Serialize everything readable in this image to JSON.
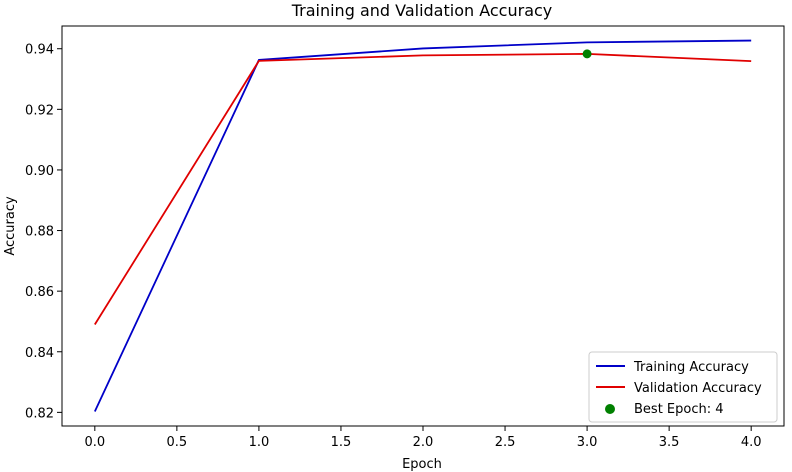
{
  "chart_data": {
    "type": "line",
    "title": "Training and Validation Accuracy",
    "xlabel": "Epoch",
    "ylabel": "Accuracy",
    "xlim": [
      -0.2,
      4.2
    ],
    "ylim": [
      0.8155,
      0.9475
    ],
    "xticks": [
      0.0,
      0.5,
      1.0,
      1.5,
      2.0,
      2.5,
      3.0,
      3.5,
      4.0
    ],
    "xtick_labels": [
      "0.0",
      "0.5",
      "1.0",
      "1.5",
      "2.0",
      "2.5",
      "3.0",
      "3.5",
      "4.0"
    ],
    "yticks": [
      0.82,
      0.84,
      0.86,
      0.88,
      0.9,
      0.92,
      0.94
    ],
    "ytick_labels": [
      "0.82",
      "0.84",
      "0.86",
      "0.88",
      "0.90",
      "0.92",
      "0.94"
    ],
    "grid": false,
    "legend_position": "bottom-right",
    "x": [
      0,
      1,
      2,
      3,
      4
    ],
    "series": [
      {
        "name": "Training Accuracy",
        "color": "#0000c8",
        "values": [
          0.8203,
          0.9363,
          0.9401,
          0.9421,
          0.9427
        ]
      },
      {
        "name": "Validation Accuracy",
        "color": "#e00000",
        "values": [
          0.849,
          0.936,
          0.9378,
          0.9383,
          0.9359
        ]
      }
    ],
    "best_point": {
      "name": "Best Epoch: 4",
      "x": 3,
      "y": 0.9383,
      "color": "#008000"
    }
  }
}
